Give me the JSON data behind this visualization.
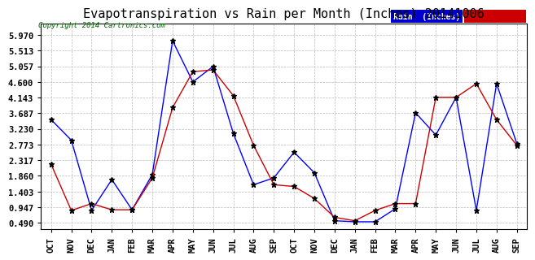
{
  "title": "Evapotranspiration vs Rain per Month (Inches) 20141006",
  "copyright": "Copyright 2014 Cartronics.com",
  "x_labels": [
    "OCT",
    "NOV",
    "DEC",
    "JAN",
    "FEB",
    "MAR",
    "APR",
    "MAY",
    "JUN",
    "JUL",
    "AUG",
    "SEP",
    "OCT",
    "NOV",
    "DEC",
    "JAN",
    "FEB",
    "MAR",
    "APR",
    "MAY",
    "JUN",
    "JUL",
    "AUG",
    "SEP"
  ],
  "yticks": [
    0.49,
    0.947,
    1.403,
    1.86,
    2.317,
    2.773,
    3.23,
    3.687,
    4.143,
    4.6,
    5.057,
    5.513,
    5.97
  ],
  "ylim": [
    0.3,
    6.3
  ],
  "rain_inches": [
    3.5,
    2.9,
    0.85,
    1.75,
    0.87,
    1.9,
    5.8,
    4.6,
    5.05,
    3.1,
    1.6,
    1.8,
    2.55,
    1.95,
    0.55,
    0.52,
    0.52,
    0.9,
    3.7,
    3.05,
    4.15,
    0.85,
    4.55,
    2.8
  ],
  "et_inches": [
    2.2,
    0.85,
    1.05,
    0.87,
    0.87,
    1.8,
    3.85,
    4.9,
    4.95,
    4.2,
    2.75,
    1.6,
    1.55,
    1.2,
    0.65,
    0.55,
    0.85,
    1.05,
    1.05,
    4.15,
    4.15,
    4.55,
    3.5,
    2.75
  ],
  "rain_color": "#0000FF",
  "et_color": "#CC0000",
  "bg_color": "#FFFFFF",
  "grid_color": "#BBBBBB",
  "title_fontsize": 11,
  "tick_fontsize": 7.5,
  "marker": "*",
  "marker_color": "#000000",
  "marker_size": 4.5
}
